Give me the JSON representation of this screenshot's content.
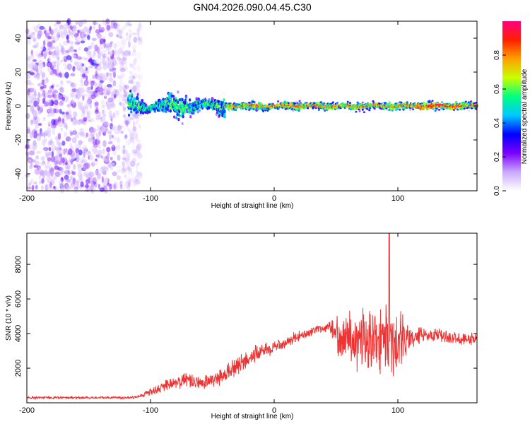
{
  "title": "GN04.2026.090.04.45.C30",
  "chart_data": [
    {
      "type": "heatmap",
      "title": "GN04.2026.090.04.45.C30",
      "xlabel": "Height of straight line (km)",
      "ylabel": "Frequency (Hz)",
      "xlim": [
        -200,
        164
      ],
      "ylim": [
        -50,
        50
      ],
      "xticks": [
        -200,
        -100,
        0,
        100
      ],
      "yticks": [
        -40,
        -20,
        0,
        20,
        40
      ],
      "colorbar": {
        "label": "Normalized spectral amplitude",
        "range": [
          0,
          1
        ],
        "ticks": [
          0.0,
          0.2,
          0.4,
          0.6,
          0.8
        ],
        "colors": [
          "#ffffff",
          "#c9a8ff",
          "#7a00ff",
          "#0000ff",
          "#00c8ff",
          "#00ff80",
          "#c8ff00",
          "#ffa000",
          "#ff2000",
          "#ff0080"
        ]
      },
      "description_regions": [
        {
          "x_range": [
            -200,
            -118
          ],
          "pattern": "broadband scatter across all frequencies"
        },
        {
          "x_range": [
            -118,
            -40
          ],
          "pattern": "band near 0 Hz, width about +/-8 Hz"
        },
        {
          "x_range": [
            -40,
            164
          ],
          "pattern": "narrow band at 0 Hz, peak amplitude near 1.0"
        }
      ]
    },
    {
      "type": "line",
      "xlabel": "Height of straight line (km)",
      "ylabel": "SNR (10 * v/v)",
      "xlim": [
        -200,
        164
      ],
      "ylim": [
        0,
        9800
      ],
      "xticks": [
        -200,
        -100,
        0,
        100
      ],
      "yticks": [
        2000,
        4000,
        6000,
        8000
      ],
      "color": "#ee3333",
      "envelope": {
        "x": [
          -200,
          -150,
          -120,
          -110,
          -100,
          -90,
          -80,
          -70,
          -60,
          -50,
          -40,
          -30,
          -20,
          -10,
          0,
          10,
          20,
          30,
          40,
          45,
          50,
          60,
          70,
          80,
          90,
          95,
          100,
          105,
          110,
          120,
          130,
          140,
          150,
          164
        ],
        "y": [
          300,
          300,
          300,
          350,
          600,
          900,
          1200,
          1300,
          1100,
          1300,
          1600,
          2100,
          2600,
          3000,
          3200,
          3500,
          3900,
          4100,
          4300,
          4400,
          4000,
          3800,
          3600,
          3700,
          3800,
          3700,
          3500,
          3600,
          3700,
          4000,
          3900,
          3800,
          3700,
          3700
        ],
        "noise": [
          80,
          80,
          80,
          120,
          250,
          400,
          500,
          550,
          450,
          500,
          600,
          700,
          650,
          500,
          450,
          400,
          350,
          300,
          250,
          300,
          1200,
          1800,
          2000,
          2300,
          2400,
          2600,
          2200,
          1600,
          800,
          450,
          450,
          450,
          450,
          450
        ]
      }
    }
  ]
}
